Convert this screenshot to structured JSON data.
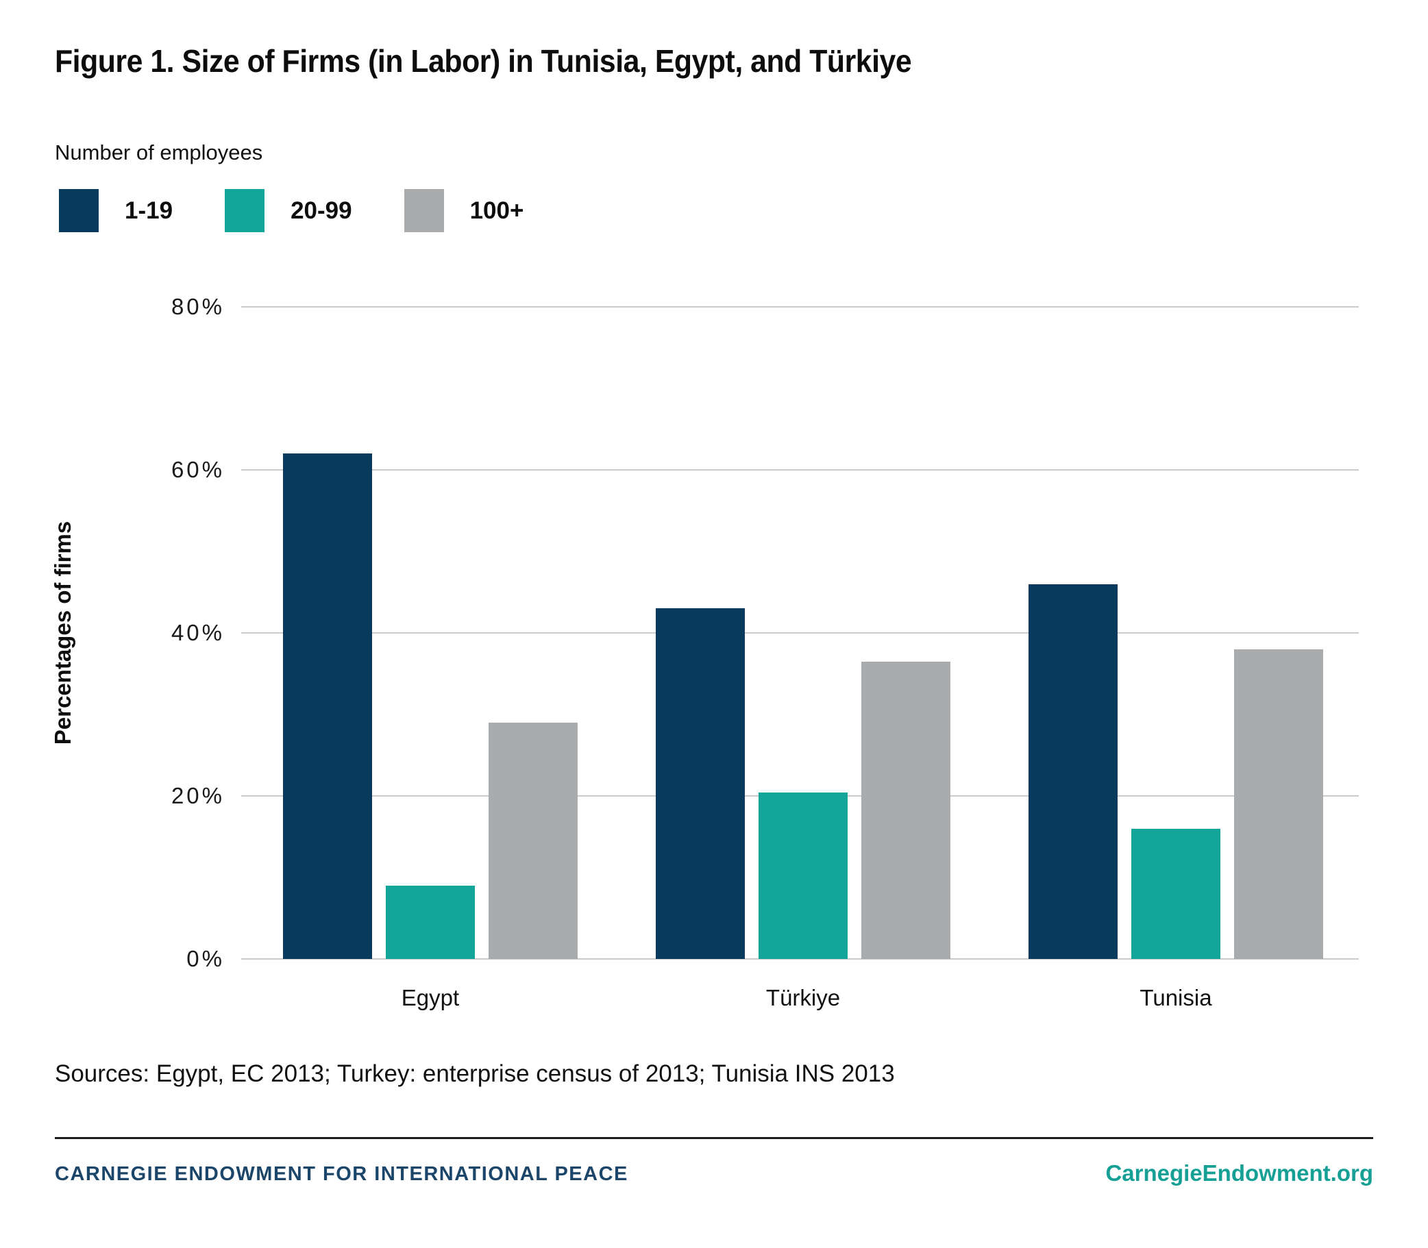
{
  "title": "Figure 1. Size of Firms (in Labor) in Tunisia, Egypt, and Türkiye",
  "legend": {
    "heading": "Number of employees",
    "items": [
      {
        "label": "1-19",
        "color": "#083a5e"
      },
      {
        "label": "20-99",
        "color": "#12a69b"
      },
      {
        "label": "100+",
        "color": "#a9abad"
      }
    ]
  },
  "chart_data": {
    "type": "bar",
    "categories": [
      "Egypt",
      "Türkiye",
      "Tunisia"
    ],
    "series": [
      {
        "name": "1-19",
        "color": "#083a5e",
        "values": [
          62,
          43,
          46
        ]
      },
      {
        "name": "20-99",
        "color": "#12a69b",
        "values": [
          9,
          20.4,
          16
        ]
      },
      {
        "name": "100+",
        "color": "#a9abad",
        "values": [
          29,
          36.5,
          38
        ]
      }
    ],
    "title": "Figure 1. Size of Firms (in Labor) in Tunisia, Egypt, and Türkiye",
    "xlabel": "",
    "ylabel": "Percentages of firms",
    "ylim": [
      0,
      80
    ],
    "yticks": [
      "80%",
      "60%",
      "40%",
      "20%",
      "0%"
    ],
    "ytick_values": [
      80,
      60,
      40,
      20,
      0
    ],
    "grid": true,
    "gridline_color": "#c9cbcc",
    "legend_position": "top-left"
  },
  "sources": "Sources: Egypt, EC 2013; Turkey: enterprise census of 2013; Tunisia INS 2013",
  "footer": {
    "left": "CARNEGIE ENDOWMENT FOR INTERNATIONAL PEACE",
    "left_color": "#1b4569",
    "right": "CarnegieEndowment.org",
    "right_color": "#16a095"
  }
}
